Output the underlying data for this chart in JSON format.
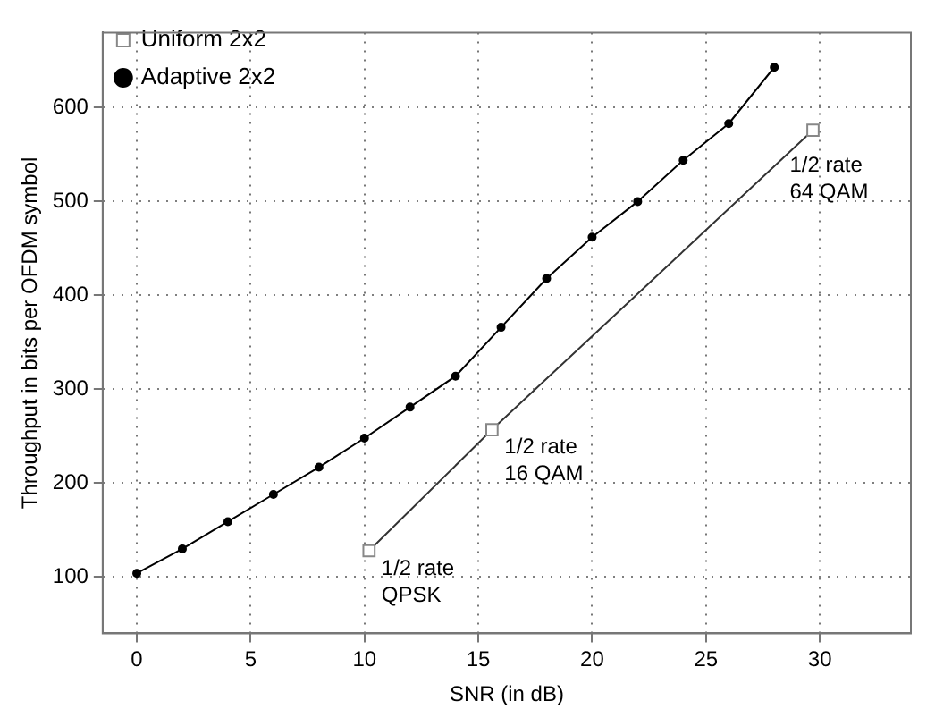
{
  "chart_data": {
    "type": "line",
    "xlabel": "SNR (in dB)",
    "ylabel": "Throughput in bits per OFDM symbol",
    "xlim": [
      -1.5,
      34
    ],
    "xticks": [
      0,
      5,
      10,
      15,
      20,
      25,
      30
    ],
    "ylim": [
      40,
      680
    ],
    "yticks": [
      100,
      200,
      300,
      400,
      500,
      600
    ],
    "grid": true,
    "legend": "top left",
    "line_style": "solid",
    "series": [
      {
        "name": "Uniform 2x2",
        "color": "#333333",
        "marker": "square",
        "x": [
          10.2,
          15.6,
          29.7
        ],
        "values": [
          128,
          257,
          576
        ]
      },
      {
        "name": "Adaptive 2x2",
        "color": "#000000",
        "marker": "circle",
        "x": [
          0,
          2,
          4,
          6,
          8,
          10,
          12,
          14,
          16,
          18,
          20,
          22,
          24,
          26,
          28
        ],
        "values": [
          104,
          130,
          159,
          188,
          217,
          248,
          281,
          314,
          366,
          418,
          462,
          500,
          544,
          583,
          643
        ]
      }
    ],
    "annotations": [
      {
        "text": "1/2 rate\nQPSK",
        "x": 10.2,
        "y": 128
      },
      {
        "text": "1/2 rate\n16 QAM",
        "x": 15.6,
        "y": 257
      },
      {
        "text": "1/2 rate\n64 QAM",
        "x": 29.7,
        "y": 576
      }
    ]
  }
}
